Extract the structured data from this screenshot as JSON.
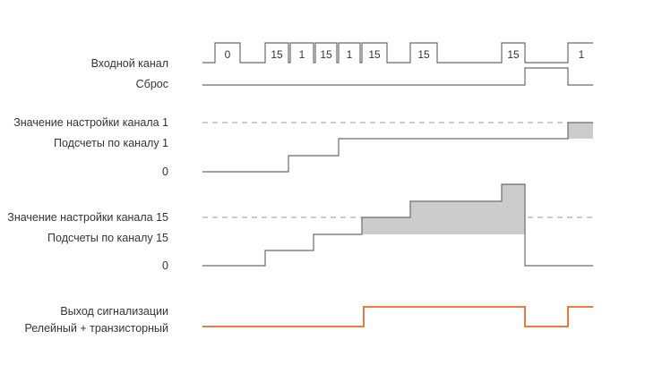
{
  "labels": {
    "input_channel": "Входной канал",
    "reset": "Сброс",
    "setpoint_ch1": "Значение настройки канала 1",
    "counts_ch1": "Подсчеты по каналу 1",
    "zero_ch1": "0",
    "setpoint_ch15": "Значение настройки канала 15",
    "counts_ch15": "Подсчеты по каналу 15",
    "zero_ch15": "0",
    "alarm_output": "Выход сигнализации",
    "relay_transistor": "Релейный + транзисторный"
  },
  "input_pulses": [
    "0",
    "15",
    "1",
    "15",
    "1",
    "15",
    "15",
    "15",
    "1"
  ],
  "colors": {
    "signal": "#6b6b6b",
    "alarm": "#e8692a",
    "fill": "#cccccc",
    "dashed": "#999999",
    "text": "#333333"
  }
}
